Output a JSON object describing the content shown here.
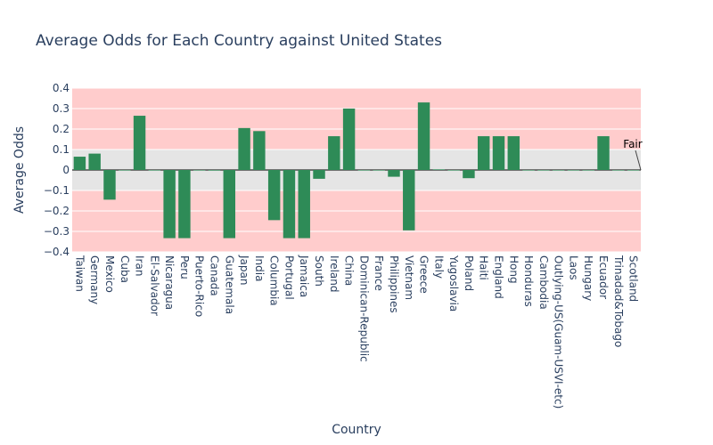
{
  "chart_data": {
    "type": "bar",
    "title": "Average Odds for Each Country against United States",
    "xlabel": "Country",
    "ylabel": "Average Odds",
    "ylim": [
      -0.4,
      0.4
    ],
    "yticks": [
      0.4,
      0.3,
      0.2,
      0.1,
      0,
      -0.1,
      -0.2,
      -0.3,
      -0.4
    ],
    "grid": true,
    "fair_band": [
      -0.1,
      0.1
    ],
    "annotation": {
      "text": "Fair",
      "y": 0.0
    },
    "colors": {
      "bar": "#2e8b57",
      "fair_band": "#e5e5e5",
      "unfair_band": "#ffcccc",
      "text": "#2a3f5f"
    },
    "categories": [
      "Taiwan",
      "Germany",
      "Mexico",
      "Cuba",
      "Iran",
      "El-Salvador",
      "Nicaragua",
      "Peru",
      "Puerto-Rico",
      "Canada",
      "Guatemala",
      "Japan",
      "India",
      "Columbia",
      "Portugal",
      "Jamaica",
      "South",
      "Ireland",
      "China",
      "Dominican-Republic",
      "France",
      "Philippines",
      "Vietnam",
      "Greece",
      "Italy",
      "Yugoslavia",
      "Poland",
      "Haiti",
      "England",
      "Hong",
      "Honduras",
      "Cambodia",
      "Outlying-US(Guam-USVI-etc)",
      "Laos",
      "Hungary",
      "Ecuador",
      "Trinadad&Tobago",
      "Scotland"
    ],
    "values": [
      0.065,
      0.08,
      -0.145,
      0.0,
      0.265,
      0.0,
      -0.333,
      -0.333,
      0.0,
      -0.003,
      -0.333,
      0.205,
      0.19,
      -0.245,
      -0.333,
      -0.333,
      -0.043,
      0.165,
      0.3,
      0.0,
      0.0,
      -0.033,
      -0.295,
      0.33,
      0.003,
      0.0,
      -0.04,
      0.165,
      0.165,
      0.165,
      0.0,
      0.0,
      0.0,
      0.0,
      0.0,
      0.165,
      0.0,
      0.0
    ]
  }
}
